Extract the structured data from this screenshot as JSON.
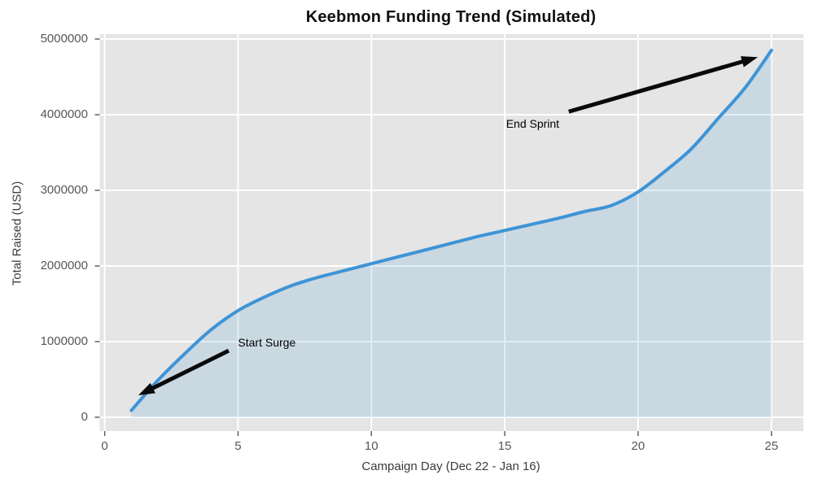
{
  "chart_data": {
    "type": "area",
    "title": "Keebmon Funding Trend (Simulated)",
    "xlabel": "Campaign Day (Dec 22 - Jan 16)",
    "ylabel": "Total Raised (USD)",
    "x": [
      1,
      2,
      3,
      4,
      5,
      6,
      7,
      8,
      9,
      10,
      11,
      12,
      13,
      14,
      15,
      16,
      17,
      18,
      19,
      20,
      21,
      22,
      23,
      24,
      25
    ],
    "series": [
      {
        "name": "Total Raised (USD)",
        "values": [
          90000,
          490000,
          840000,
          1160000,
          1410000,
          1590000,
          1740000,
          1850000,
          1940000,
          2030000,
          2120000,
          2210000,
          2300000,
          2390000,
          2470000,
          2550000,
          2630000,
          2720000,
          2800000,
          2980000,
          3250000,
          3550000,
          3950000,
          4350000,
          4850000
        ]
      }
    ],
    "xticks": [
      0,
      5,
      10,
      15,
      20,
      25
    ],
    "yticks": [
      0,
      1000000,
      2000000,
      3000000,
      4000000,
      5000000
    ],
    "xlim": [
      -0.2,
      26.2
    ],
    "ylim": [
      -200000,
      5060000
    ],
    "grid": true,
    "legend": "none",
    "annotations": [
      {
        "label": "Start Surge",
        "text": {
          "day": 5.0,
          "value": 945000
        },
        "arrow_tail": {
          "day": 4.65,
          "value": 880000
        },
        "arrow_tip": {
          "day": 1.26,
          "value": 290000
        }
      },
      {
        "label": "End Sprint",
        "text": {
          "day": 15.05,
          "value": 3840000
        },
        "arrow_tail": {
          "day": 17.4,
          "value": 4040000
        },
        "arrow_tip": {
          "day": 24.49,
          "value": 4760000
        }
      }
    ],
    "colors": {
      "line": "#3e94d6",
      "fill": "rgba(62,148,212,0.16)",
      "panel_bg": "#e5e5e5",
      "grid": "#ffffff",
      "tick": "#565656",
      "axis_label": "#3c3c3c",
      "title": "#101010",
      "annotation_text": "#000000",
      "arrow": "#0a0a0a"
    }
  }
}
